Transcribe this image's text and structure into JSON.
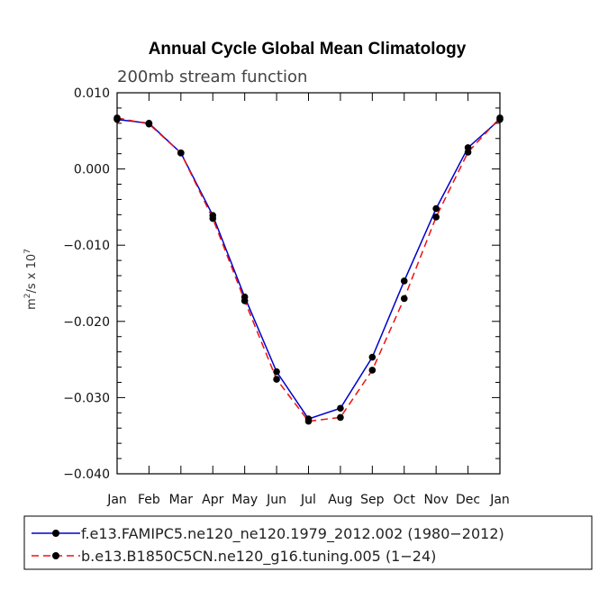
{
  "chart_data": {
    "type": "line",
    "title": "Annual Cycle Global Mean Climatology",
    "subtitle": "200mb stream function",
    "ylabel_base": "m",
    "ylabel_exp": "2",
    "ylabel_mid": "/s x 10",
    "ylabel_exp2": "7",
    "xlabel": "",
    "categories": [
      "Jan",
      "Feb",
      "Mar",
      "Apr",
      "May",
      "Jun",
      "Jul",
      "Aug",
      "Sep",
      "Oct",
      "Nov",
      "Dec",
      "Jan"
    ],
    "yticks": [
      0.01,
      0.0,
      -0.01,
      -0.02,
      -0.03,
      -0.04
    ],
    "ytick_labels": [
      "0.010",
      "0.000",
      "−0.010",
      "−0.020",
      "−0.030",
      "−0.040"
    ],
    "ylim": [
      -0.04,
      0.01
    ],
    "series": [
      {
        "name": "f.e13.FAMIPC5.ne120_ne120.1979_2012.002 (1980−2012)",
        "color": "#0000cc",
        "dash": "solid",
        "values": [
          0.0065,
          0.006,
          0.0021,
          -0.0061,
          -0.0168,
          -0.0266,
          -0.0328,
          -0.0314,
          -0.0247,
          -0.0147,
          -0.0052,
          0.0028,
          0.0065
        ]
      },
      {
        "name": "b.e13.B1850C5CN.ne120_g16.tuning.005 (1−24)",
        "color": "#ee1111",
        "dash": "dashed",
        "values": [
          0.0067,
          0.0059,
          0.0021,
          -0.0065,
          -0.0173,
          -0.0276,
          -0.0331,
          -0.0326,
          -0.0264,
          -0.017,
          -0.0063,
          0.0022,
          0.0067
        ]
      }
    ]
  }
}
